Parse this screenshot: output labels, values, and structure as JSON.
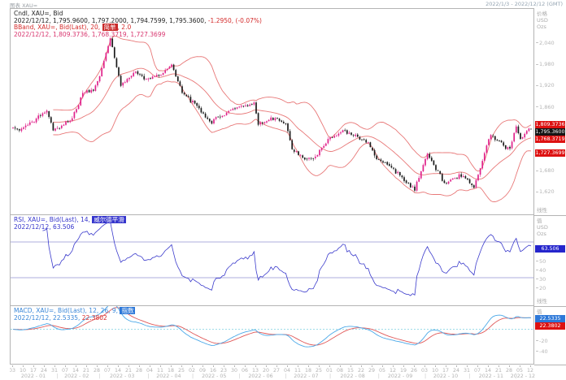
{
  "window": {
    "top_left": "图表 XAU=",
    "top_right": "2022/1/3 - 2022/12/12 (GMT)"
  },
  "main_panel": {
    "legend": {
      "line1": "Cndl, XAU=, Bid",
      "line2": "2022/12/12, 1,795.9600, 1,797.2000, 1,794.7599, 1,795.3600,",
      "line2_change": " -1.2950, (-0.07%)",
      "line3_prefix": "BBand, XAU=, Bid(Last), 20, ",
      "line3_hl": "简单",
      "line3_suffix": ", 2.0",
      "line4": "2022/12/12, 1,809.3736, 1,768.3719, 1,727.3699"
    },
    "axis": {
      "captions_top": [
        "价格",
        "USD",
        "Ozs"
      ],
      "caption_bottom": "线性",
      "badges": [
        {
          "text": "1,809.3736",
          "value": 1809.3736,
          "bg": "#dd1111"
        },
        {
          "text": "1,795.3600",
          "value": 1795.36,
          "bg": "#151515"
        },
        {
          "text": "1,768.3719",
          "value": 1768.3719,
          "bg": "#dd1111"
        },
        {
          "text": "1,727.3699",
          "value": 1727.3699,
          "bg": "#dd1111"
        }
      ]
    }
  },
  "rsi_panel": {
    "legend": {
      "line1_prefix": "RSI, XAU=, Bid(Last), 14, ",
      "line1_hl": "威尔德平滑",
      "line2": "2022/12/12, 63.506"
    },
    "axis": {
      "captions_top": [
        "值",
        "USD",
        "Ozs"
      ],
      "caption_bottom": "线性",
      "badges": [
        {
          "text": "63.506",
          "value": 63.506,
          "bg": "#2525cc"
        }
      ]
    }
  },
  "macd_panel": {
    "legend": {
      "line1_prefix": "MACD, XAU=, Bid(Last), 12, 26, 9, ",
      "line1_hl": "指数",
      "line2_blue": "2022/12/12, 22.5335,",
      "line2_red": " 22.3802"
    },
    "axis": {
      "captions_top": [
        "值"
      ],
      "caption_bottom": "",
      "badges": [
        {
          "text": "22.5335",
          "value": 22.5335,
          "bg": "#2d78d8"
        },
        {
          "text": "22.3802",
          "value": 22.3802,
          "bg": "#dd1111"
        }
      ]
    }
  },
  "x_axis": {
    "month_labels": [
      "2022 - 01",
      "2022 - 02",
      "2022 - 03",
      "2022 - 04",
      "2022 - 05",
      "2022 - 06",
      "2022 - 07",
      "2022 - 08",
      "2022 - 09",
      "2022 - 10",
      "2022 - 11",
      "2022 - 12"
    ]
  },
  "chart_data": [
    {
      "type": "candlestick",
      "title": "Cndl, XAU=, Bid",
      "symbol": "XAU=",
      "interval": "daily",
      "start_date": "2022-01-03",
      "end_date": "2022-12-12",
      "last_ohlc": {
        "date": "2022/12/12",
        "open": 1795.96,
        "high": 1797.2,
        "low": 1794.7599,
        "close": 1795.36,
        "change": -1.295,
        "change_pct": "-0.07%"
      },
      "close_anchors": [
        [
          "2022-01-03",
          1800
        ],
        [
          "2022-01-07",
          1797
        ],
        [
          "2022-01-14",
          1817
        ],
        [
          "2022-01-25",
          1848
        ],
        [
          "2022-01-28",
          1792
        ],
        [
          "2022-02-04",
          1808
        ],
        [
          "2022-02-10",
          1826
        ],
        [
          "2022-02-17",
          1898
        ],
        [
          "2022-02-24",
          1904
        ],
        [
          "2022-03-01",
          1945
        ],
        [
          "2022-03-08",
          2052
        ],
        [
          "2022-03-10",
          1997
        ],
        [
          "2022-03-15",
          1918
        ],
        [
          "2022-03-24",
          1958
        ],
        [
          "2022-03-31",
          1937
        ],
        [
          "2022-04-11",
          1948
        ],
        [
          "2022-04-18",
          1978
        ],
        [
          "2022-04-25",
          1898
        ],
        [
          "2022-05-03",
          1868
        ],
        [
          "2022-05-13",
          1811
        ],
        [
          "2022-05-16",
          1824
        ],
        [
          "2022-05-30",
          1853
        ],
        [
          "2022-06-10",
          1871
        ],
        [
          "2022-06-14",
          1808
        ],
        [
          "2022-06-24",
          1827
        ],
        [
          "2022-07-01",
          1811
        ],
        [
          "2022-07-06",
          1739
        ],
        [
          "2022-07-14",
          1710
        ],
        [
          "2022-07-21",
          1718
        ],
        [
          "2022-08-01",
          1772
        ],
        [
          "2022-08-10",
          1792
        ],
        [
          "2022-08-15",
          1780
        ],
        [
          "2022-08-25",
          1758
        ],
        [
          "2022-08-31",
          1711
        ],
        [
          "2022-09-06",
          1701
        ],
        [
          "2022-09-15",
          1665
        ],
        [
          "2022-09-26",
          1622
        ],
        [
          "2022-10-04",
          1726
        ],
        [
          "2022-10-14",
          1644
        ],
        [
          "2022-10-21",
          1657
        ],
        [
          "2022-10-27",
          1663
        ],
        [
          "2022-11-03",
          1630
        ],
        [
          "2022-11-09",
          1706
        ],
        [
          "2022-11-15",
          1779
        ],
        [
          "2022-11-23",
          1749
        ],
        [
          "2022-11-28",
          1741
        ],
        [
          "2022-12-01",
          1803
        ],
        [
          "2022-12-05",
          1768
        ],
        [
          "2022-12-09",
          1797
        ],
        [
          "2022-12-12",
          1795.36
        ]
      ],
      "overlay": {
        "name": "BBand",
        "period": 20,
        "type": "简单",
        "stdev_mult": 2.0,
        "last": {
          "upper": 1809.3736,
          "middle": 1768.3719,
          "lower": 1727.3699
        }
      },
      "ylim": [
        1555,
        2135
      ],
      "ytick_step": 60,
      "up_color": "#e0218a",
      "down_color": "#1a1a1a",
      "band_color": "#e87878"
    },
    {
      "type": "line",
      "name": "RSI",
      "period": 14,
      "smoothing": "威尔德平滑",
      "last": 63.506,
      "ylim": [
        0,
        100
      ],
      "yticks": [
        80,
        70,
        60,
        50,
        40,
        30,
        20
      ],
      "hlines": [
        70,
        30
      ],
      "color": "#3b3bcc",
      "hline_color": "#9090d0"
    },
    {
      "type": "line",
      "name": "MACD",
      "params": [
        12,
        26,
        9
      ],
      "ma_type": "指数",
      "last_macd": 22.5335,
      "last_signal": 22.3802,
      "ylim": [
        -65,
        45
      ],
      "yticks": [
        20,
        0,
        -20,
        -40
      ],
      "macd_color": "#4aa8e8",
      "signal_color": "#e05858",
      "zero_color": "#7fd0e0"
    }
  ]
}
